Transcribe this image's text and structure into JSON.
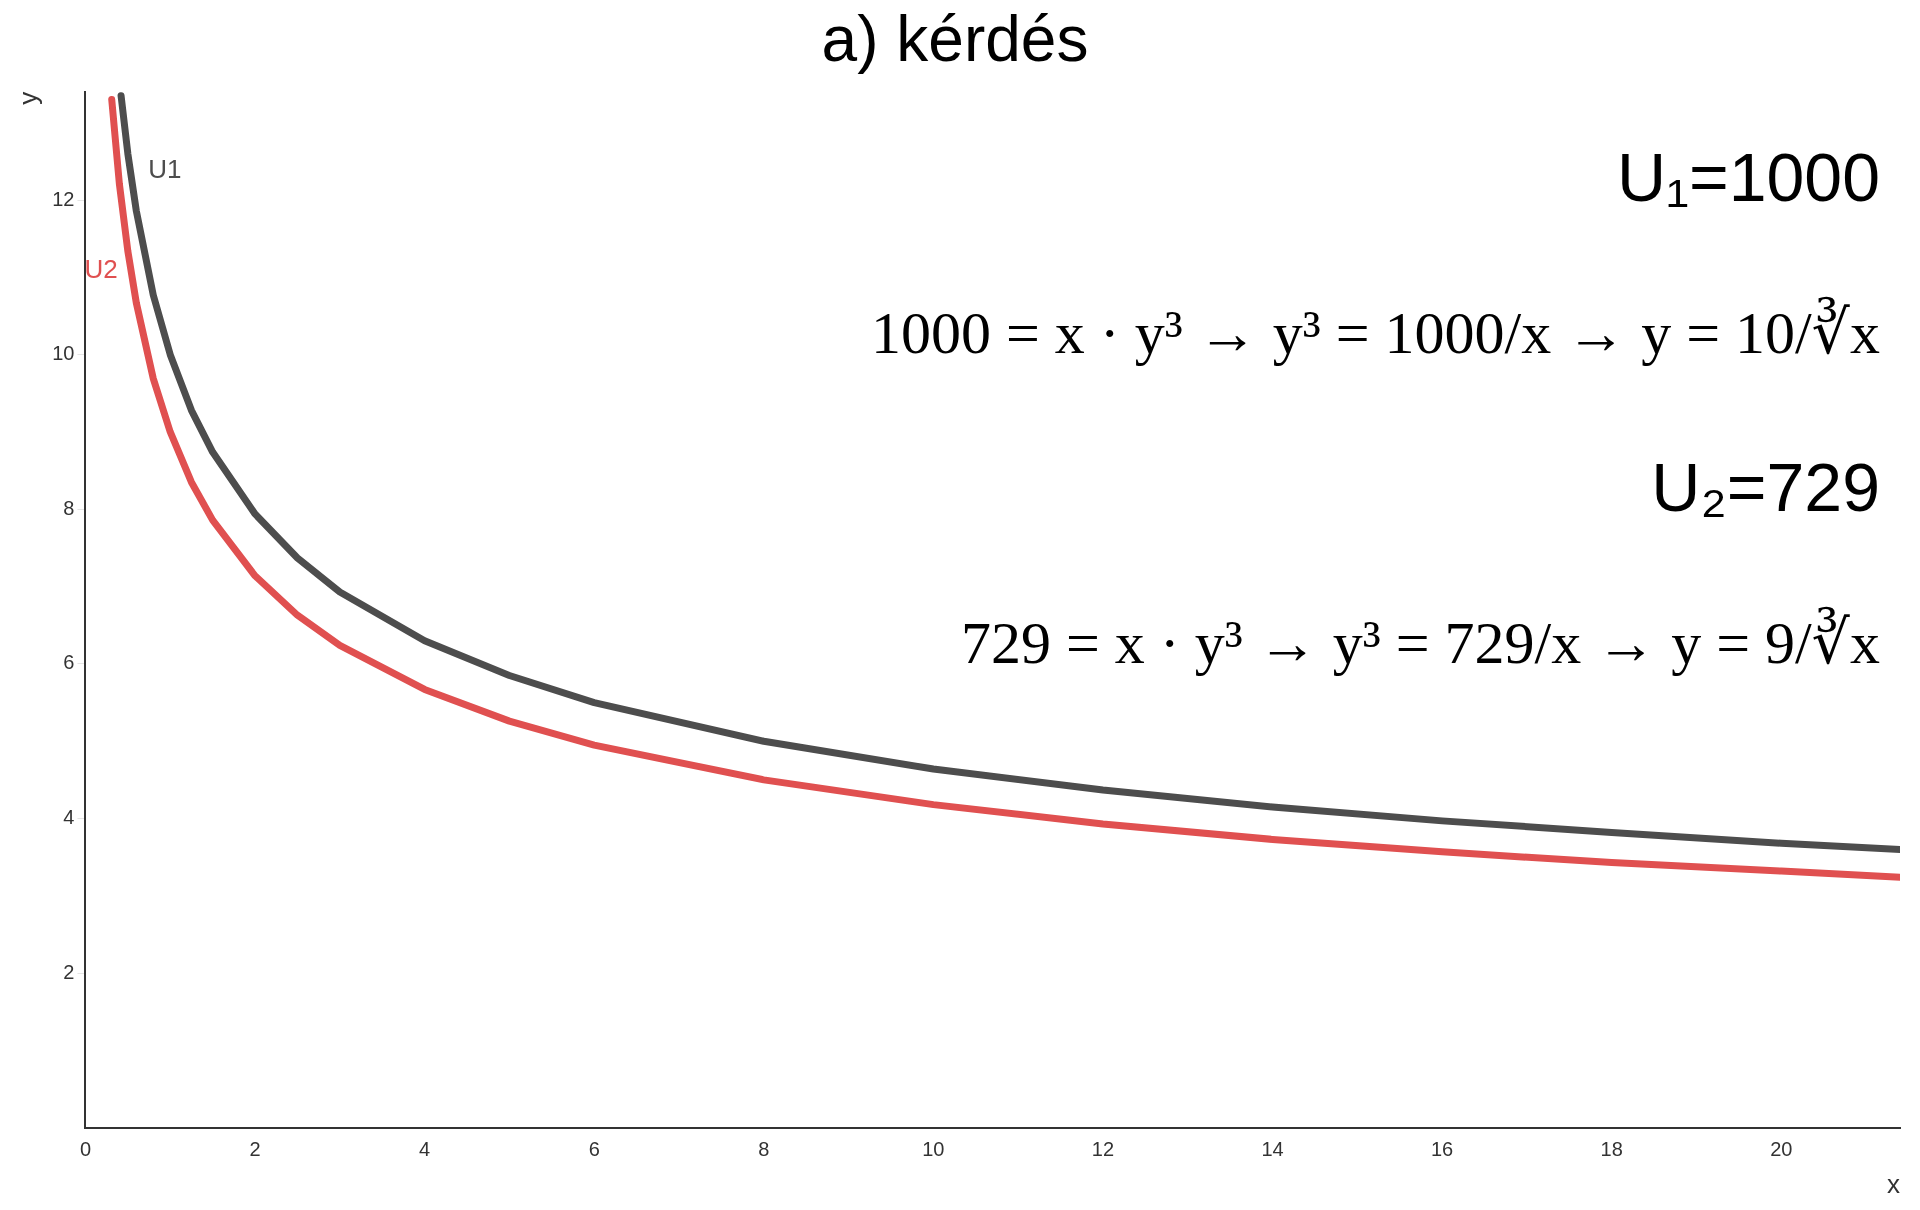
{
  "chart_data": {
    "type": "line",
    "title": "a) kérdés",
    "xlabel": "x",
    "ylabel": "y",
    "xlim": [
      0,
      21.4
    ],
    "ylim": [
      0,
      13.4
    ],
    "xticks": [
      0,
      2,
      4,
      6,
      8,
      10,
      12,
      14,
      16,
      18,
      20
    ],
    "yticks": [
      2,
      4,
      6,
      8,
      10,
      12
    ],
    "grid": false,
    "legend": false,
    "marker": "none",
    "line_style": "solid",
    "series": [
      {
        "name": "U1",
        "color": "#4d4d4d",
        "x": [
          0.42,
          0.5,
          0.6,
          0.8,
          1,
          1.25,
          1.5,
          2,
          2.5,
          3,
          4,
          5,
          6,
          8,
          10,
          12,
          14,
          16,
          18,
          20,
          21.4
        ],
        "values": [
          13.35,
          12.6,
          11.86,
          10.77,
          10,
          9.28,
          8.74,
          7.94,
          7.37,
          6.93,
          6.3,
          5.85,
          5.5,
          5.0,
          4.64,
          4.37,
          4.15,
          3.97,
          3.82,
          3.68,
          3.6
        ]
      },
      {
        "name": "U2",
        "color": "#e05050",
        "x": [
          0.31,
          0.4,
          0.5,
          0.6,
          0.8,
          1,
          1.25,
          1.5,
          2,
          2.5,
          3,
          4,
          5,
          6,
          8,
          10,
          12,
          14,
          16,
          18,
          20,
          21.4
        ],
        "values": [
          13.3,
          12.21,
          11.34,
          10.67,
          9.69,
          9,
          8.35,
          7.86,
          7.14,
          6.63,
          6.24,
          5.67,
          5.26,
          4.95,
          4.5,
          4.18,
          3.93,
          3.73,
          3.57,
          3.43,
          3.32,
          3.24
        ]
      }
    ],
    "annotations": [
      "U₁=1000",
      "1000 = x · y³ → y³ = 1000/x → y = 10/∛x",
      "U₂=729",
      "729 = x · y³ → y³ = 729/x → y = 9/∛x"
    ]
  }
}
